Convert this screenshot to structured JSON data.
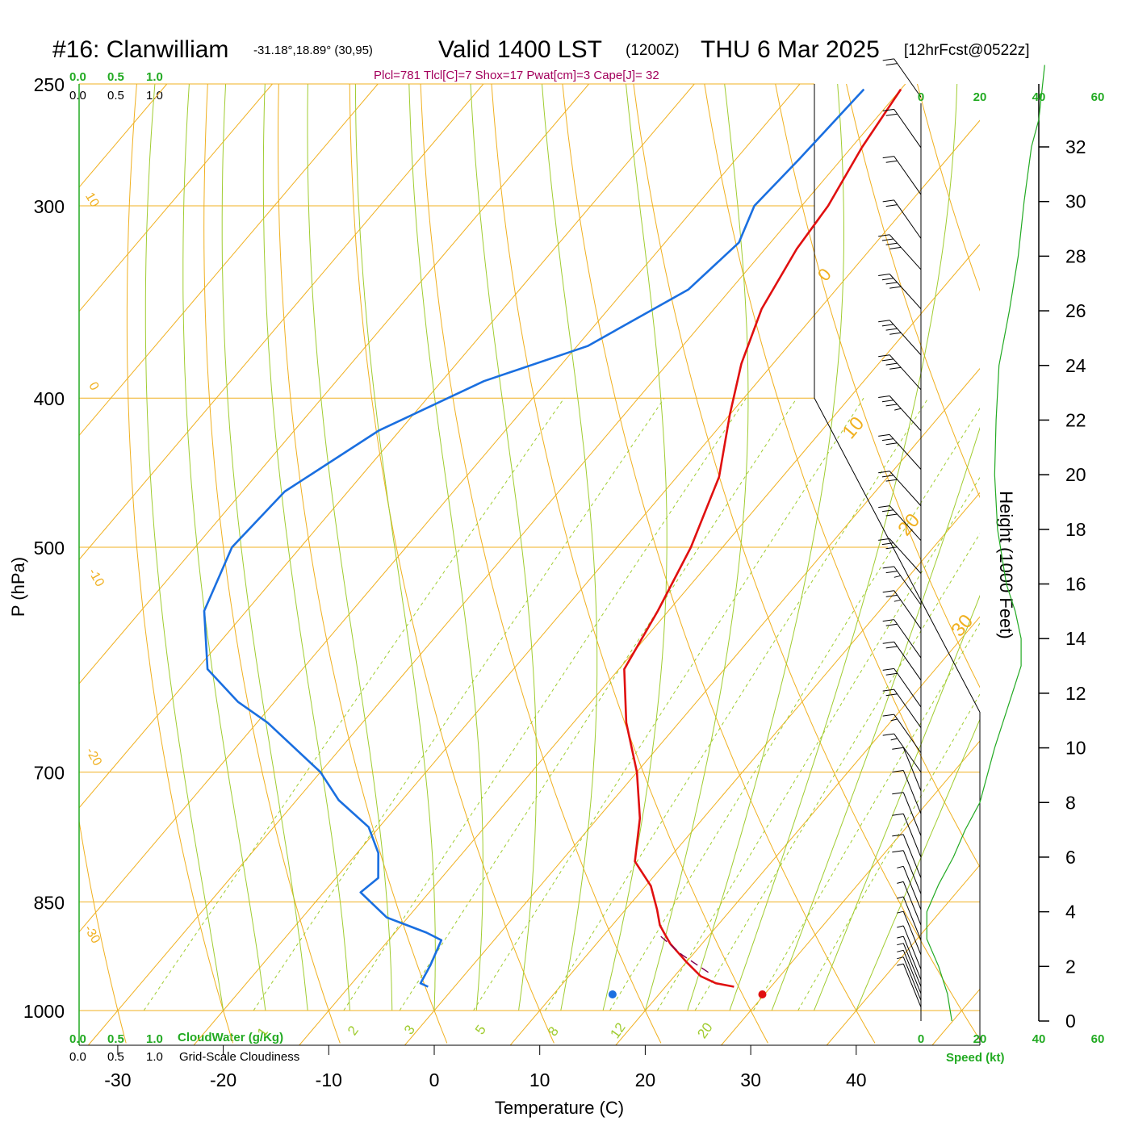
{
  "header": {
    "station": "#16: Clanwilliam",
    "coords": "-31.18°,18.89° (30,95)",
    "valid": "Valid 1400 LST",
    "zulu": "(1200Z)",
    "date": "THU 6 Mar 2025",
    "forecast": "[12hrFcst@0522z]"
  },
  "stats_line": "Plcl=781 Tlcl[C]=7 Shox=17 Pwat[cm]=3 Cape[J]= 32",
  "top_scale": {
    "green": [
      "0.0",
      "0.5",
      "1.0"
    ],
    "black": [
      "0.0",
      "0.5",
      "1.0"
    ]
  },
  "bottom_scale": {
    "green": [
      "0.0",
      "0.5",
      "1.0"
    ],
    "green_label": "CloudWater (g/Kg)",
    "black": [
      "0.0",
      "0.5",
      "1.0"
    ],
    "black_label": "Grid-Scale Cloudiness"
  },
  "colors": {
    "temperature": "#e01010",
    "dewpoint": "#1a6fe0",
    "parcel": "#800050",
    "isobar": "#f0b020",
    "isotherm": "#f0b020",
    "dry_adiabat": "#f0b020",
    "moist_adiabat": "#a0cc30",
    "mixing_ratio": "#a0cc30",
    "height_profile": "#22aa22"
  },
  "chart_data": {
    "type": "line",
    "title": "Valid 1400 LST (1200Z) THU 6 Mar 2025",
    "xlabel": "Temperature (C)",
    "ylabel": "P (hPa)",
    "y2label": "Height (1000 Feet)",
    "y_scale": "log",
    "xlim": [
      -30,
      45
    ],
    "ylim": [
      1000,
      250
    ],
    "pressure_ticks": [
      "250",
      "300",
      "400",
      "500",
      "700",
      "850",
      "1000"
    ],
    "temperature_ticks": [
      "-30",
      "-20",
      "-10",
      "0",
      "10",
      "20",
      "30",
      "40"
    ],
    "height_ticks": [
      "0",
      "2",
      "4",
      "6",
      "8",
      "10",
      "12",
      "14",
      "16",
      "18",
      "20",
      "22",
      "24",
      "26",
      "28",
      "30",
      "32"
    ],
    "speed_ticks_top": [
      "0",
      "20",
      "40",
      "60"
    ],
    "speed_ticks_bottom": [
      "0",
      "20",
      "40",
      "60"
    ],
    "speed_label": "Speed (kt)",
    "isotherm_labels": [
      "0",
      "10",
      "20",
      "30"
    ],
    "dry_adiabat_labels": [
      "10",
      "0",
      "-10",
      "-20",
      "-30"
    ],
    "mixing_ratio_labels": [
      "1",
      "2",
      "3",
      "5",
      "8",
      "12",
      "20"
    ],
    "series": [
      {
        "name": "Temperature",
        "points": [
          [
            252,
            -30
          ],
          [
            275,
            -29
          ],
          [
            300,
            -27.5
          ],
          [
            320,
            -27
          ],
          [
            350,
            -25.5
          ],
          [
            380,
            -23
          ],
          [
            410,
            -20
          ],
          [
            450,
            -16
          ],
          [
            500,
            -13
          ],
          [
            550,
            -11
          ],
          [
            600,
            -9.5
          ],
          [
            650,
            -5
          ],
          [
            700,
            0
          ],
          [
            750,
            4
          ],
          [
            800,
            7
          ],
          [
            830,
            10.5
          ],
          [
            860,
            13
          ],
          [
            880,
            14.5
          ],
          [
            890,
            15.5
          ],
          [
            905,
            17
          ],
          [
            930,
            20
          ],
          [
            950,
            22.5
          ],
          [
            960,
            24.5
          ],
          [
            965,
            26.5
          ]
        ]
      },
      {
        "name": "Dewpoint",
        "points": [
          [
            252,
            -33.5
          ],
          [
            280,
            -34
          ],
          [
            300,
            -34.5
          ],
          [
            317,
            -33
          ],
          [
            340,
            -34
          ],
          [
            370,
            -39
          ],
          [
            390,
            -46
          ],
          [
            420,
            -52
          ],
          [
            460,
            -56
          ],
          [
            500,
            -56.5
          ],
          [
            550,
            -54
          ],
          [
            600,
            -49
          ],
          [
            630,
            -43.5
          ],
          [
            650,
            -39
          ],
          [
            700,
            -30
          ],
          [
            730,
            -26
          ],
          [
            760,
            -21
          ],
          [
            790,
            -18
          ],
          [
            820,
            -16
          ],
          [
            838,
            -16.5
          ],
          [
            870,
            -12
          ],
          [
            890,
            -7
          ],
          [
            900,
            -5
          ],
          [
            935,
            -4
          ],
          [
            960,
            -3.5
          ],
          [
            965,
            -2.5
          ]
        ]
      },
      {
        "name": "Parcel",
        "points": [
          [
            895,
            15.5
          ],
          [
            920,
            19
          ],
          [
            945,
            23
          ]
        ]
      }
    ],
    "surface_points": [
      {
        "name": "dewpoint",
        "pressure": 965,
        "value": 15.6
      },
      {
        "name": "temperature",
        "pressure": 965,
        "value": 29.8
      }
    ],
    "height_profile_kt": [
      [
        0,
        10.5
      ],
      [
        1,
        9
      ],
      [
        2,
        6
      ],
      [
        3,
        2
      ],
      [
        4,
        2
      ],
      [
        5,
        6
      ],
      [
        6,
        11
      ],
      [
        7,
        15
      ],
      [
        8,
        20
      ],
      [
        10,
        25
      ],
      [
        12,
        31
      ],
      [
        13,
        34
      ],
      [
        14,
        34
      ],
      [
        15,
        32
      ],
      [
        16,
        29
      ],
      [
        18,
        26
      ],
      [
        20,
        25
      ],
      [
        22,
        25.5
      ],
      [
        24,
        26.5
      ],
      [
        26,
        30
      ],
      [
        28,
        33
      ],
      [
        30,
        35
      ],
      [
        32,
        37.5
      ],
      [
        33,
        40
      ],
      [
        34,
        41
      ],
      [
        35,
        42
      ]
    ],
    "wind_barbs": [
      {
        "p": 255,
        "kt": 20
      },
      {
        "p": 275,
        "kt": 20
      },
      {
        "p": 295,
        "kt": 20
      },
      {
        "p": 315,
        "kt": 20
      },
      {
        "p": 330,
        "kt": 40
      },
      {
        "p": 350,
        "kt": 40
      },
      {
        "p": 375,
        "kt": 40
      },
      {
        "p": 395,
        "kt": 40
      },
      {
        "p": 420,
        "kt": 35
      },
      {
        "p": 445,
        "kt": 30
      },
      {
        "p": 470,
        "kt": 30
      },
      {
        "p": 495,
        "kt": 30
      },
      {
        "p": 520,
        "kt": 30
      },
      {
        "p": 545,
        "kt": 25
      },
      {
        "p": 565,
        "kt": 25
      },
      {
        "p": 590,
        "kt": 20
      },
      {
        "p": 610,
        "kt": 20
      },
      {
        "p": 635,
        "kt": 20
      },
      {
        "p": 655,
        "kt": 20
      },
      {
        "p": 680,
        "kt": 15
      },
      {
        "p": 700,
        "kt": 15
      },
      {
        "p": 720,
        "kt": 10
      },
      {
        "p": 745,
        "kt": 10
      },
      {
        "p": 770,
        "kt": 10
      },
      {
        "p": 795,
        "kt": 10
      },
      {
        "p": 820,
        "kt": 10
      },
      {
        "p": 840,
        "kt": 10
      },
      {
        "p": 860,
        "kt": 5
      },
      {
        "p": 880,
        "kt": 5
      },
      {
        "p": 900,
        "kt": 5
      },
      {
        "p": 920,
        "kt": 5
      },
      {
        "p": 940,
        "kt": 5
      },
      {
        "p": 955,
        "kt": 5
      },
      {
        "p": 965,
        "kt": 5
      },
      {
        "p": 975,
        "kt": 5
      },
      {
        "p": 985,
        "kt": 5
      },
      {
        "p": 995,
        "kt": 5
      }
    ]
  }
}
